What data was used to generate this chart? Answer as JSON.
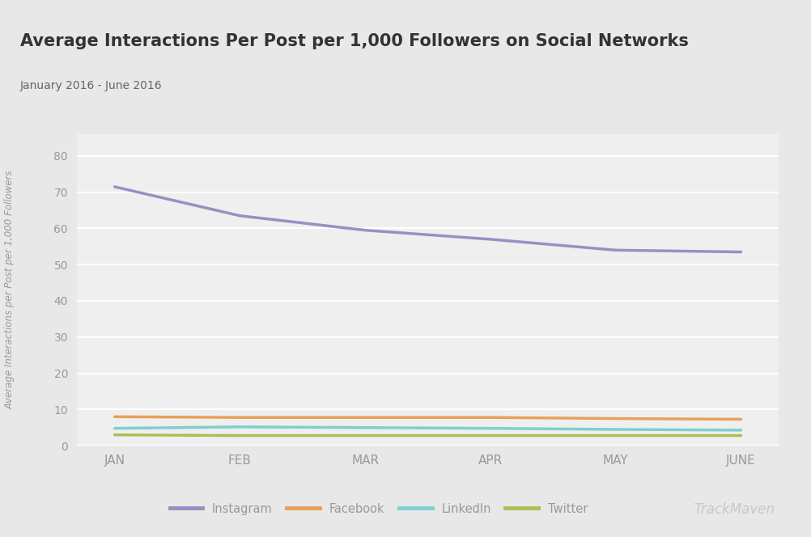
{
  "title": "Average Interactions Per Post per 1,000 Followers on Social Networks",
  "subtitle": "January 2016 - June 2016",
  "ylabel": "Average Interactions per Post per 1,000 Followers",
  "watermark": "TrackMaven",
  "months": [
    "JAN",
    "FEB",
    "MAR",
    "APR",
    "MAY",
    "JUNE"
  ],
  "series": {
    "Instagram": {
      "values": [
        71.5,
        63.5,
        59.5,
        57.0,
        54.0,
        53.5
      ],
      "color": "#9b8ec4",
      "linewidth": 2.5
    },
    "Facebook": {
      "values": [
        8.0,
        7.8,
        7.8,
        7.8,
        7.5,
        7.3
      ],
      "color": "#e8a05a",
      "linewidth": 2.5
    },
    "LinkedIn": {
      "values": [
        4.8,
        5.2,
        5.0,
        4.8,
        4.5,
        4.3
      ],
      "color": "#7fcfcf",
      "linewidth": 2.5
    },
    "Twitter": {
      "values": [
        3.0,
        2.8,
        2.8,
        2.8,
        2.8,
        2.8
      ],
      "color": "#aabf55",
      "linewidth": 2.5
    }
  },
  "ylim": [
    0,
    86
  ],
  "yticks": [
    0,
    10,
    20,
    30,
    40,
    50,
    60,
    70,
    80
  ],
  "outer_bg": "#e8e8e8",
  "header_bg": "#e8e8e8",
  "plot_outer_bg": "#ffffff",
  "plot_inner_bg": "#efefef",
  "grid_color": "#ffffff",
  "title_color": "#333333",
  "subtitle_color": "#666666",
  "tick_color": "#999999",
  "ylabel_color": "#999999",
  "legend_order": [
    "Instagram",
    "Facebook",
    "LinkedIn",
    "Twitter"
  ]
}
